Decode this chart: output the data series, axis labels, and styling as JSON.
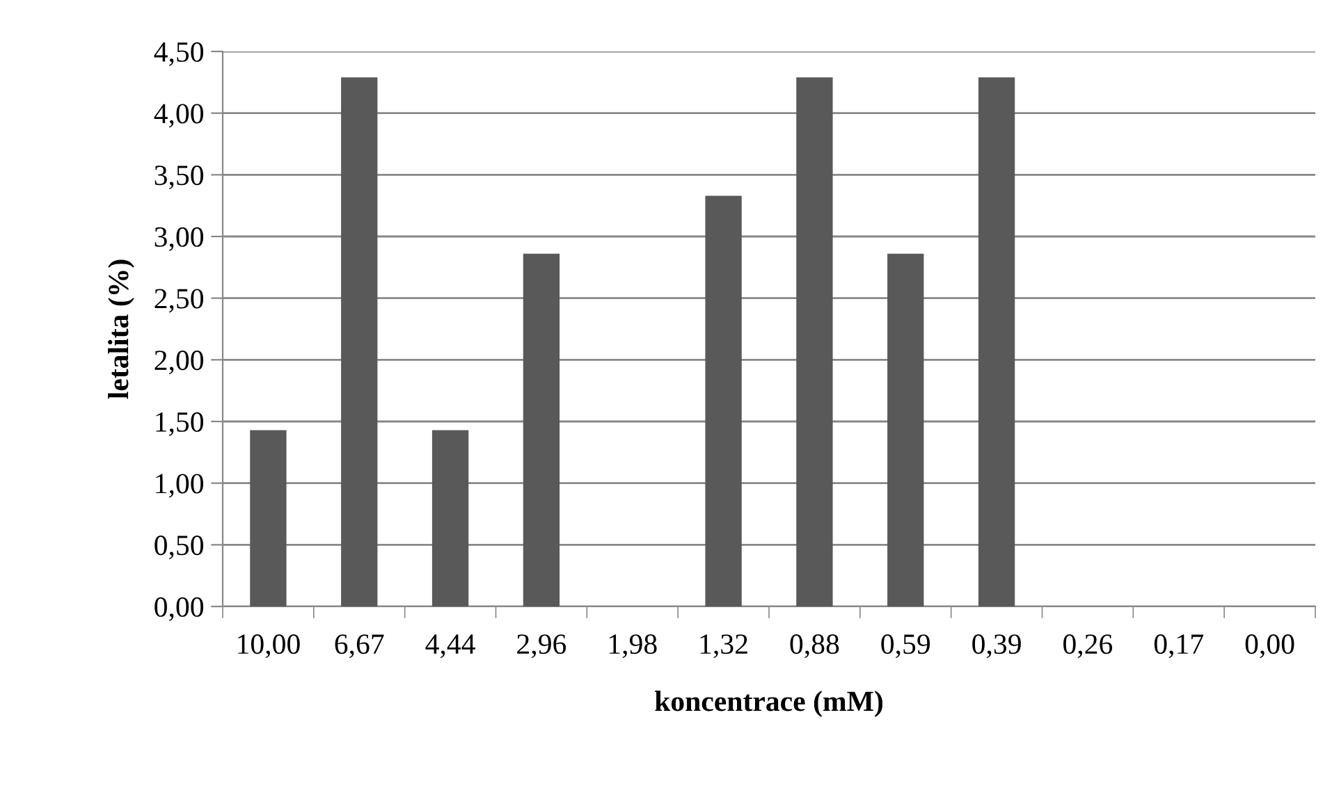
{
  "chart_data": {
    "type": "bar",
    "xlabel": "koncentrace (mM)",
    "ylabel": "letalita (%)",
    "categories": [
      "10,00",
      "6,67",
      "4,44",
      "2,96",
      "1,98",
      "1,32",
      "0,88",
      "0,59",
      "0,39",
      "0,26",
      "0,17",
      "0,00"
    ],
    "values": [
      1.43,
      4.29,
      1.43,
      2.86,
      0,
      3.33,
      4.29,
      2.86,
      4.29,
      0,
      0,
      0
    ],
    "color": "#595959",
    "ylim": [
      0,
      4.5
    ],
    "yticks": [
      {
        "value": 0,
        "label": "0,00"
      },
      {
        "value": 0.5,
        "label": "0,50"
      },
      {
        "value": 1,
        "label": "1,00"
      },
      {
        "value": 1.5,
        "label": "1,50"
      },
      {
        "value": 2,
        "label": "2,00"
      },
      {
        "value": 2.5,
        "label": "2,50"
      },
      {
        "value": 3,
        "label": "3,00"
      },
      {
        "value": 3.5,
        "label": "3,50"
      },
      {
        "value": 4,
        "label": "4,00"
      },
      {
        "value": 4.5,
        "label": "4,50"
      }
    ],
    "grid": "y",
    "legend": false
  }
}
